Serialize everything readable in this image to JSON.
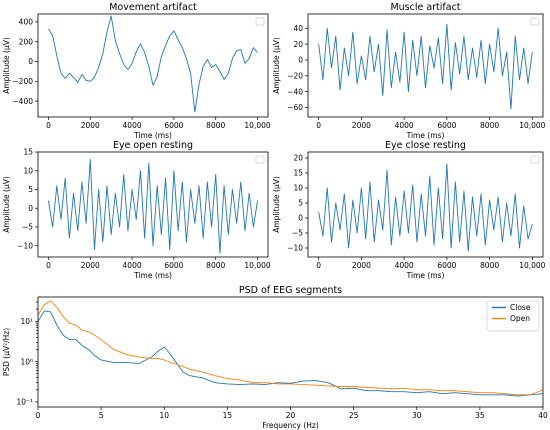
{
  "colors": {
    "blue": "#1f77b4",
    "orange": "#ff7f0e"
  },
  "chart_data": [
    {
      "type": "line",
      "title": "Movement artifact",
      "xlabel": "Time (ms)",
      "ylabel": "Amplitude (μV)",
      "xlim": [
        -500,
        10500
      ],
      "ylim": [
        -560,
        480
      ],
      "xticks": [
        0,
        2000,
        4000,
        6000,
        8000,
        10000
      ],
      "xtick_labels": [
        "0",
        "2000",
        "4000",
        "6000",
        "8000",
        "10,000"
      ],
      "yticks": [
        -400,
        -200,
        0,
        200,
        400
      ],
      "ytick_labels": [
        "−400",
        "−200",
        "0",
        "200",
        "400"
      ],
      "legend": "top-right",
      "series": [
        {
          "color": "#1f77b4",
          "x": [
            0,
            200,
            400,
            600,
            800,
            1000,
            1200,
            1400,
            1600,
            1800,
            2000,
            2200,
            2400,
            2600,
            2800,
            3000,
            3200,
            3400,
            3600,
            3800,
            4000,
            4200,
            4400,
            4600,
            4800,
            5000,
            5200,
            5400,
            5600,
            5800,
            6000,
            6200,
            6400,
            6600,
            6800,
            7000,
            7200,
            7400,
            7600,
            7800,
            8000,
            8200,
            8400,
            8600,
            8800,
            9000,
            9200,
            9400,
            9600,
            9800,
            10000
          ],
          "y": [
            330,
            260,
            60,
            -120,
            -170,
            -120,
            -160,
            -210,
            -130,
            -190,
            -200,
            -160,
            -60,
            80,
            300,
            460,
            210,
            80,
            -30,
            -80,
            -20,
            100,
            180,
            90,
            -50,
            -240,
            -150,
            50,
            160,
            260,
            310,
            220,
            140,
            30,
            -120,
            -510,
            -230,
            -50,
            20,
            -60,
            -30,
            -100,
            -180,
            -120,
            30,
            110,
            120,
            -20,
            30,
            140,
            90
          ]
        }
      ]
    },
    {
      "type": "line",
      "title": "Muscle artifact",
      "xlabel": "Time (ms)",
      "ylabel": "Amplitude (μV)",
      "xlim": [
        -500,
        10500
      ],
      "ylim": [
        -72,
        58
      ],
      "xticks": [
        0,
        2000,
        4000,
        6000,
        8000,
        10000
      ],
      "xtick_labels": [
        "0",
        "2000",
        "4000",
        "6000",
        "8000",
        "10,000"
      ],
      "yticks": [
        -60,
        -40,
        -20,
        0,
        20,
        40
      ],
      "ytick_labels": [
        "−60",
        "−40",
        "−20",
        "0",
        "20",
        "40"
      ],
      "legend": "top-right",
      "series": [
        {
          "color": "#1f77b4",
          "x": [
            0,
            200,
            400,
            600,
            800,
            1000,
            1200,
            1400,
            1600,
            1800,
            2000,
            2200,
            2400,
            2600,
            2800,
            3000,
            3200,
            3400,
            3600,
            3800,
            4000,
            4200,
            4400,
            4600,
            4800,
            5000,
            5200,
            5400,
            5600,
            5800,
            6000,
            6200,
            6400,
            6600,
            6800,
            7000,
            7200,
            7400,
            7600,
            7800,
            8000,
            8200,
            8400,
            8600,
            8800,
            9000,
            9200,
            9400,
            9600,
            9800,
            10000
          ],
          "y": [
            20,
            -25,
            40,
            -10,
            30,
            -38,
            15,
            -20,
            35,
            -30,
            5,
            -25,
            30,
            -15,
            20,
            -45,
            38,
            -35,
            10,
            -28,
            35,
            -40,
            25,
            -20,
            30,
            -35,
            18,
            -10,
            28,
            -30,
            45,
            -38,
            22,
            -18,
            30,
            -25,
            15,
            -22,
            25,
            -30,
            20,
            -15,
            40,
            -20,
            10,
            -62,
            30,
            -25,
            15,
            -30,
            10
          ]
        }
      ]
    },
    {
      "type": "line",
      "title": "Eye open resting",
      "xlabel": "Time (ms)",
      "ylabel": "Amplitude (μV)",
      "xlim": [
        -500,
        10500
      ],
      "ylim": [
        -13,
        15
      ],
      "xticks": [
        0,
        2000,
        4000,
        6000,
        8000,
        10000
      ],
      "xtick_labels": [
        "0",
        "2000",
        "4000",
        "6000",
        "8000",
        "10,000"
      ],
      "yticks": [
        -10,
        -5,
        0,
        5,
        10,
        15
      ],
      "ytick_labels": [
        "−10",
        "−5",
        "0",
        "5",
        "10",
        "15"
      ],
      "legend": "top-right",
      "series": [
        {
          "color": "#1f77b4",
          "x": [
            0,
            200,
            400,
            600,
            800,
            1000,
            1200,
            1400,
            1600,
            1800,
            2000,
            2200,
            2400,
            2600,
            2800,
            3000,
            3200,
            3400,
            3600,
            3800,
            4000,
            4200,
            4400,
            4600,
            4800,
            5000,
            5200,
            5400,
            5600,
            5800,
            6000,
            6200,
            6400,
            6600,
            6800,
            7000,
            7200,
            7400,
            7600,
            7800,
            8000,
            8200,
            8400,
            8600,
            8800,
            9000,
            9200,
            9400,
            9600,
            9800,
            10000
          ],
          "y": [
            2,
            -5,
            6,
            -3,
            8,
            -8,
            4,
            -6,
            7,
            -4,
            13,
            -11,
            5,
            -9,
            6,
            -7,
            4,
            -5,
            9,
            -6,
            5,
            -3,
            10,
            -8,
            12,
            -10,
            6,
            -7,
            8,
            -11,
            10,
            -6,
            7,
            -9,
            5,
            -4,
            6,
            -8,
            7,
            -5,
            9,
            -12,
            6,
            -7,
            5,
            -4,
            7,
            -6,
            4,
            -5,
            2
          ]
        }
      ]
    },
    {
      "type": "line",
      "title": "Eye close resting",
      "xlabel": "Time (ms)",
      "ylabel": "Amplitude (μV)",
      "xlim": [
        -500,
        10500
      ],
      "ylim": [
        -13,
        22
      ],
      "xticks": [
        0,
        2000,
        4000,
        6000,
        8000,
        10000
      ],
      "xtick_labels": [
        "0",
        "2000",
        "4000",
        "6000",
        "8000",
        "10,000"
      ],
      "yticks": [
        -10,
        -5,
        0,
        5,
        10,
        15,
        20
      ],
      "ytick_labels": [
        "−10",
        "−5",
        "0",
        "5",
        "10",
        "15",
        "20"
      ],
      "legend": "top-right",
      "series": [
        {
          "color": "#1f77b4",
          "x": [
            0,
            200,
            400,
            600,
            800,
            1000,
            1200,
            1400,
            1600,
            1800,
            2000,
            2200,
            2400,
            2600,
            2800,
            3000,
            3200,
            3400,
            3600,
            3800,
            4000,
            4200,
            4400,
            4600,
            4800,
            5000,
            5200,
            5400,
            5600,
            5800,
            6000,
            6200,
            6400,
            6600,
            6800,
            7000,
            7200,
            7400,
            7600,
            7800,
            8000,
            8200,
            8400,
            8600,
            8800,
            9000,
            9200,
            9400,
            9600,
            9800,
            10000
          ],
          "y": [
            2,
            -6,
            10,
            -8,
            5,
            -4,
            8,
            -10,
            6,
            -5,
            10,
            -7,
            12,
            -8,
            6,
            -4,
            16,
            -9,
            7,
            -6,
            9,
            -5,
            11,
            -8,
            8,
            -6,
            14,
            -9,
            10,
            -7,
            18,
            -10,
            12,
            -8,
            9,
            -11,
            7,
            -6,
            8,
            -9,
            6,
            -4,
            7,
            -8,
            5,
            -6,
            8,
            -10,
            4,
            -7,
            -2
          ]
        }
      ]
    },
    {
      "type": "line",
      "title": "PSD of EEG segments",
      "xlabel": "Frequency (Hz)",
      "ylabel": "PSD (μV²/Hz)",
      "xlim": [
        0,
        40
      ],
      "ylim": [
        0.075,
        40
      ],
      "yscale": "log",
      "xticks": [
        0,
        5,
        10,
        15,
        20,
        25,
        30,
        35,
        40
      ],
      "xtick_labels": [
        "0",
        "5",
        "10",
        "15",
        "20",
        "25",
        "30",
        "35",
        "40"
      ],
      "yticks": [
        0.1,
        1,
        10
      ],
      "ytick_labels": [
        "10⁻¹",
        "10⁰",
        "10¹"
      ],
      "legend": "top-right",
      "series": [
        {
          "name": "Close",
          "color": "#1f77b4",
          "x": [
            0,
            0.5,
            1,
            1.5,
            2,
            2.5,
            3,
            3.5,
            4,
            4.5,
            5,
            6,
            7,
            8,
            9,
            9.5,
            10,
            10.5,
            11,
            11.5,
            12,
            12.5,
            13,
            14,
            15,
            16,
            17,
            18,
            19,
            20,
            21,
            22,
            23,
            24,
            25,
            26,
            27,
            28,
            29,
            30,
            31,
            32,
            33,
            34,
            35,
            36,
            37,
            38,
            39,
            40
          ],
          "y": [
            10,
            18,
            17,
            8,
            4.5,
            3.5,
            3.5,
            2.5,
            2,
            1.4,
            1.1,
            0.95,
            0.95,
            0.9,
            1.3,
            1.8,
            2.3,
            1.5,
            0.9,
            0.55,
            0.45,
            0.42,
            0.4,
            0.3,
            0.28,
            0.27,
            0.28,
            0.27,
            0.3,
            0.29,
            0.33,
            0.34,
            0.3,
            0.21,
            0.22,
            0.19,
            0.19,
            0.18,
            0.18,
            0.17,
            0.18,
            0.16,
            0.17,
            0.16,
            0.15,
            0.15,
            0.15,
            0.14,
            0.15,
            0.16
          ]
        },
        {
          "name": "Open",
          "color": "#ff7f0e",
          "x": [
            0,
            0.5,
            1,
            1.5,
            2,
            2.5,
            3,
            3.5,
            4,
            4.5,
            5,
            6,
            7,
            8,
            9,
            9.5,
            10,
            10.5,
            11,
            11.5,
            12,
            12.5,
            13,
            14,
            15,
            16,
            17,
            18,
            19,
            20,
            21,
            22,
            23,
            24,
            25,
            26,
            27,
            28,
            29,
            30,
            31,
            32,
            33,
            34,
            35,
            36,
            37,
            38,
            39,
            40
          ],
          "y": [
            14,
            26,
            32,
            22,
            13,
            9,
            8,
            6,
            5.5,
            4.5,
            3.5,
            2,
            1.5,
            1.3,
            1.2,
            1.2,
            1.1,
            0.95,
            0.85,
            0.75,
            0.65,
            0.6,
            0.55,
            0.45,
            0.38,
            0.35,
            0.3,
            0.3,
            0.28,
            0.28,
            0.27,
            0.26,
            0.25,
            0.24,
            0.24,
            0.23,
            0.22,
            0.21,
            0.22,
            0.2,
            0.2,
            0.19,
            0.19,
            0.18,
            0.17,
            0.17,
            0.16,
            0.15,
            0.15,
            0.2
          ]
        }
      ]
    }
  ]
}
